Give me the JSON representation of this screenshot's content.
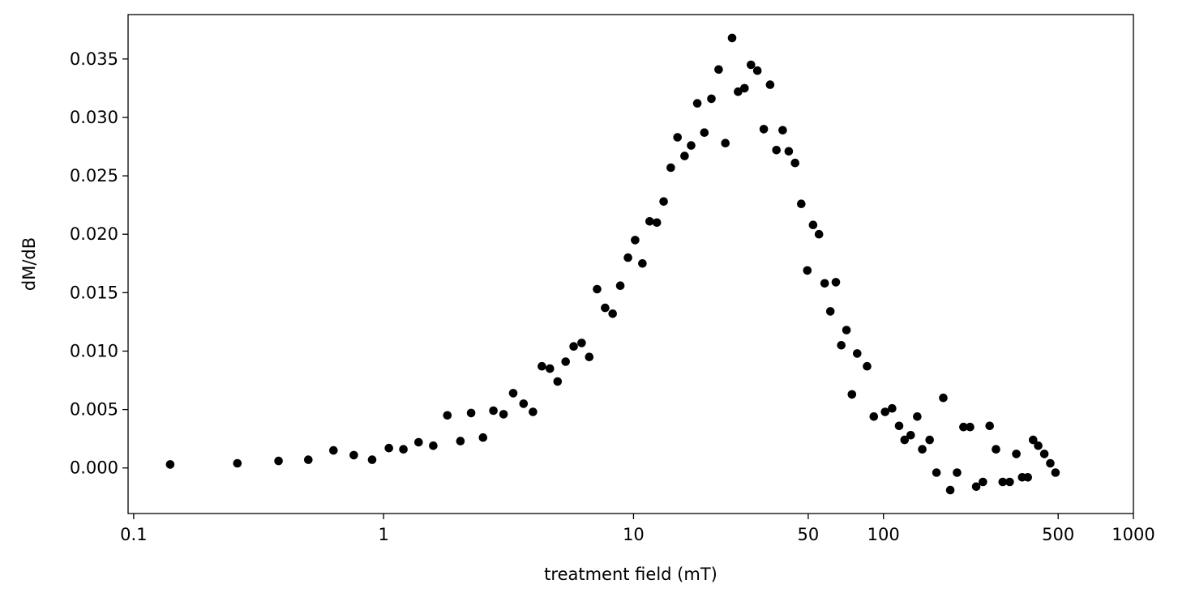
{
  "chart_data": {
    "type": "scatter",
    "title": "",
    "xlabel": "treatment field (mT)",
    "ylabel": "dM/dB",
    "xscale": "log",
    "xlim": [
      0.095,
      1000
    ],
    "ylim": [
      -0.0039,
      0.0388
    ],
    "xticks": [
      0.1,
      1,
      10,
      50,
      100,
      500,
      1000
    ],
    "xtick_labels": [
      "0.1",
      "1",
      "10",
      "50",
      "100",
      "500",
      "1000"
    ],
    "yticks": [
      0,
      0.005,
      0.01,
      0.015,
      0.02,
      0.025,
      0.03,
      0.035
    ],
    "ytick_labels": [
      "0.000",
      "0.005",
      "0.010",
      "0.015",
      "0.020",
      "0.025",
      "0.030",
      "0.035"
    ],
    "grid": false,
    "marker_color": "#000000",
    "x": [
      0.14,
      0.26,
      0.38,
      0.5,
      0.63,
      0.76,
      0.9,
      1.05,
      1.2,
      1.38,
      1.58,
      1.8,
      2.03,
      2.24,
      2.5,
      2.75,
      3.02,
      3.3,
      3.63,
      3.96,
      4.3,
      4.63,
      4.97,
      5.35,
      5.76,
      6.2,
      6.65,
      7.15,
      7.7,
      8.25,
      8.85,
      9.5,
      10.15,
      10.85,
      11.6,
      12.4,
      13.2,
      14.1,
      15,
      16,
      17,
      18,
      19.2,
      20.5,
      21.9,
      23.3,
      24.8,
      26.2,
      27.8,
      29.5,
      31.3,
      33.2,
      35.2,
      37.3,
      39.5,
      41.8,
      44.3,
      46.9,
      49.6,
      52.3,
      55.2,
      58.2,
      61.3,
      64.5,
      67.8,
      71.1,
      74.8,
      78.5,
      86,
      91.5,
      101.5,
      108.3,
      115.5,
      121.5,
      128.5,
      136.5,
      143,
      153,
      163,
      173.5,
      185,
      197,
      209,
      222,
      235,
      250,
      266,
      282,
      300,
      320,
      340,
      359,
      378,
      397,
      416,
      440,
      465,
      488
    ],
    "y": [
      0.0003,
      0.0004,
      0.0006,
      0.0007,
      0.0015,
      0.0011,
      0.0007,
      0.0017,
      0.0016,
      0.0022,
      0.0019,
      0.0045,
      0.0023,
      0.0047,
      0.0026,
      0.0049,
      0.0046,
      0.0064,
      0.0055,
      0.0048,
      0.0087,
      0.0085,
      0.0074,
      0.0091,
      0.0104,
      0.0107,
      0.0095,
      0.0153,
      0.0137,
      0.0132,
      0.0156,
      0.018,
      0.0195,
      0.0175,
      0.0211,
      0.021,
      0.0228,
      0.0257,
      0.0283,
      0.0267,
      0.0276,
      0.0312,
      0.0287,
      0.0316,
      0.0341,
      0.0278,
      0.0368,
      0.0322,
      0.0325,
      0.0345,
      0.034,
      0.029,
      0.0328,
      0.0272,
      0.0289,
      0.0271,
      0.0261,
      0.0226,
      0.0169,
      0.0208,
      0.02,
      0.0158,
      0.0134,
      0.0159,
      0.0105,
      0.0118,
      0.0063,
      0.0098,
      0.0087,
      0.0044,
      0.0048,
      0.0051,
      0.0036,
      0.0024,
      0.0028,
      0.0044,
      0.0016,
      0.0024,
      -0.0004,
      0.006,
      -0.0019,
      -0.0004,
      0.0035,
      0.0035,
      -0.0016,
      -0.0012,
      0.0036,
      0.0016,
      -0.0012,
      -0.0012,
      0.0012,
      -0.0008,
      -0.0008,
      0.0024,
      0.0019,
      0.0012,
      0.0004,
      -0.0004
    ]
  }
}
